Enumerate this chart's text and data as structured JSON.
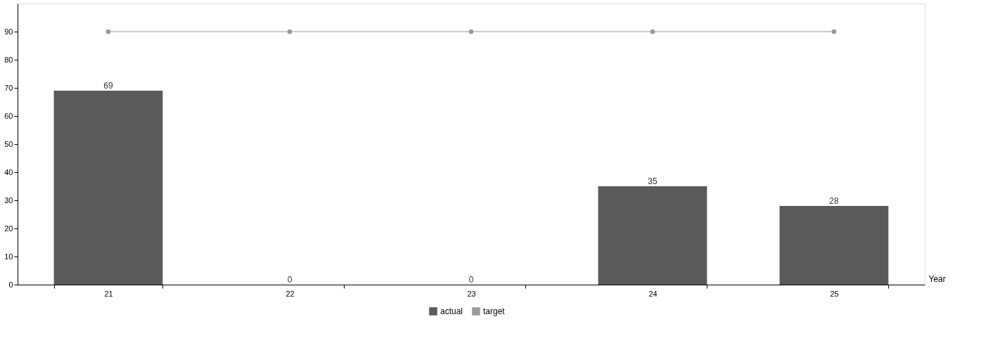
{
  "chart_data": {
    "type": "bar",
    "xlabel": "Year",
    "categories": [
      "21",
      "22",
      "23",
      "24",
      "25"
    ],
    "series": [
      {
        "name": "actual",
        "color": "#5a5a5a",
        "values": [
          69,
          0,
          0,
          35,
          28
        ],
        "value_labels": [
          "69",
          "0",
          "0",
          "35",
          "28"
        ]
      },
      {
        "name": "target",
        "type": "line",
        "color": "#9a9a9a",
        "values": [
          90,
          90,
          90,
          90,
          90
        ],
        "marker": "circle"
      }
    ],
    "ylim": [
      0,
      100
    ],
    "yticks": [
      0,
      10,
      20,
      30,
      40,
      50,
      60,
      70,
      80,
      90
    ],
    "grid": false,
    "legend": "bottom"
  }
}
